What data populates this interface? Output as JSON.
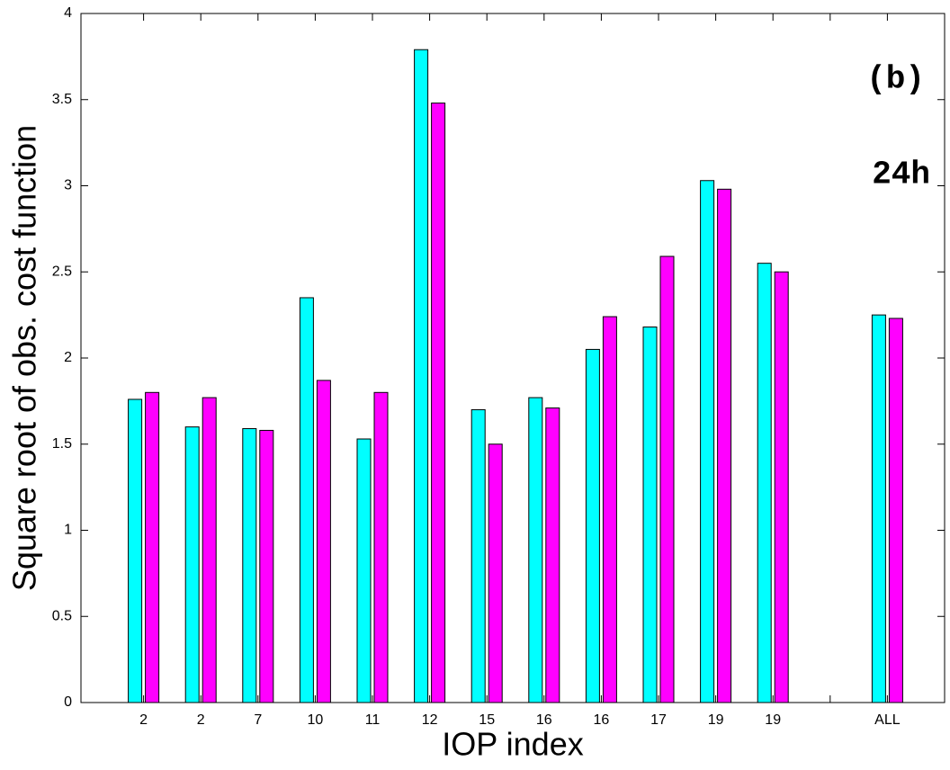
{
  "chart_data": {
    "type": "bar",
    "xlabel": "IOP index",
    "ylabel": "Square root of obs. cost function",
    "annotations": [
      "(b)",
      "24h"
    ],
    "categories": [
      "2",
      "2",
      "7",
      "10",
      "11",
      "12",
      "15",
      "16",
      "16",
      "17",
      "19",
      "19",
      null,
      "ALL"
    ],
    "series": [
      {
        "color": "#00ffff",
        "values": [
          1.76,
          1.6,
          1.59,
          2.35,
          1.53,
          3.79,
          1.7,
          1.77,
          2.05,
          2.18,
          3.03,
          2.55,
          null,
          2.25
        ]
      },
      {
        "color": "#ff00ff",
        "values": [
          1.8,
          1.77,
          1.58,
          1.87,
          1.8,
          3.48,
          1.5,
          1.71,
          2.24,
          2.59,
          2.98,
          2.5,
          null,
          2.23
        ]
      }
    ],
    "ylim": [
      0,
      4
    ],
    "yticks": [
      0,
      0.5,
      1,
      1.5,
      2,
      2.5,
      3,
      3.5,
      4
    ]
  }
}
